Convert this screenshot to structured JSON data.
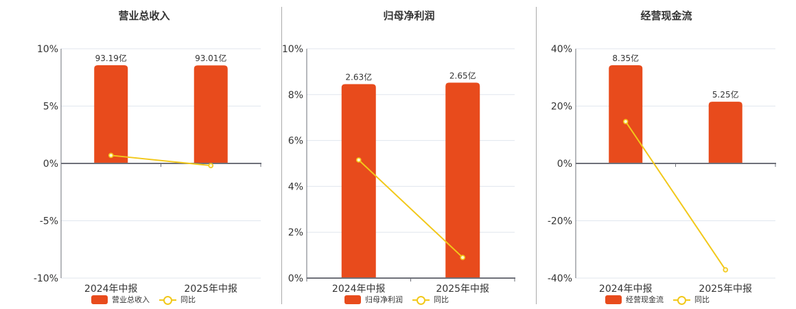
{
  "colors": {
    "bar": "#E84B1C",
    "line": "#F2C81A",
    "grid": "#E0E6EE",
    "axis": "#6E7079",
    "text": "#333333",
    "divider": "#AAAAAA"
  },
  "panels": [
    {
      "title": "营业总收入",
      "legend": {
        "bar_label": "营业总收入",
        "line_label": "同比"
      }
    },
    {
      "title": "归母净利润",
      "legend": {
        "bar_label": "归母净利润",
        "line_label": "同比"
      }
    },
    {
      "title": "经营现金流",
      "legend": {
        "bar_label": "经营现金流",
        "line_label": "同比"
      }
    }
  ],
  "chart_data": [
    {
      "type": "bar+line",
      "title": "营业总收入",
      "categories": [
        "2024年中报",
        "2025年中报"
      ],
      "series": [
        {
          "name": "营业总收入",
          "type": "bar",
          "unit": "亿",
          "values": [
            93.19,
            93.01
          ],
          "labels": [
            "93.19亿",
            "93.01亿"
          ]
        },
        {
          "name": "同比",
          "type": "line",
          "unit": "%",
          "values": [
            0.7,
            -0.19
          ]
        }
      ],
      "yaxis": {
        "range": [
          -10,
          10
        ],
        "ticks": [
          10,
          5,
          0,
          -5,
          -10
        ],
        "tick_labels": [
          "10%",
          "5%",
          "0%",
          "-5%",
          "-10%"
        ]
      },
      "bar_axis_range": [
        -108.8,
        108.8
      ],
      "xlabel": "",
      "ylabel": "",
      "grid": true,
      "legend_position": "bottom"
    },
    {
      "type": "bar+line",
      "title": "归母净利润",
      "categories": [
        "2024年中报",
        "2025年中报"
      ],
      "series": [
        {
          "name": "归母净利润",
          "type": "bar",
          "unit": "亿",
          "values": [
            2.63,
            2.65
          ],
          "labels": [
            "2.63亿",
            "2.65亿"
          ]
        },
        {
          "name": "同比",
          "type": "line",
          "unit": "%",
          "values": [
            5.15,
            0.9
          ]
        }
      ],
      "yaxis": {
        "range": [
          0,
          10
        ],
        "ticks": [
          10,
          8,
          6,
          4,
          2,
          0
        ],
        "tick_labels": [
          "10%",
          "8%",
          "6%",
          "4%",
          "2%",
          "0%"
        ]
      },
      "bar_axis_range": [
        0,
        3.11
      ],
      "xlabel": "",
      "ylabel": "",
      "grid": true,
      "legend_position": "bottom"
    },
    {
      "type": "bar+line",
      "title": "经营现金流",
      "categories": [
        "2024年中报",
        "2025年中报"
      ],
      "series": [
        {
          "name": "经营现金流",
          "type": "bar",
          "unit": "亿",
          "values": [
            8.35,
            5.25
          ],
          "labels": [
            "8.35亿",
            "5.25亿"
          ]
        },
        {
          "name": "同比",
          "type": "line",
          "unit": "%",
          "values": [
            14.6,
            -37.1
          ]
        }
      ],
      "yaxis": {
        "range": [
          -40,
          40
        ],
        "ticks": [
          40,
          20,
          0,
          -20,
          -40
        ],
        "tick_labels": [
          "40%",
          "20%",
          "0%",
          "-20%",
          "-40%"
        ]
      },
      "bar_axis_range": [
        -9.75,
        9.75
      ],
      "xlabel": "",
      "ylabel": "",
      "grid": true,
      "legend_position": "bottom"
    }
  ]
}
